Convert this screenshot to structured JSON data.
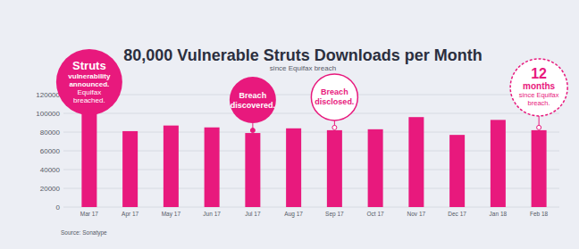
{
  "chart_data": {
    "type": "bar",
    "title": "80,000 Vulnerable Struts Downloads per Month",
    "subtitle": "since Equifax breach",
    "categories": [
      "Mar 17",
      "Apr 17",
      "May 17",
      "Jun 17",
      "Jul 17",
      "Aug 17",
      "Sep 17",
      "Oct 17",
      "Nov 17",
      "Dec 17",
      "Jan 18",
      "Feb 18"
    ],
    "values": [
      100000,
      81000,
      87000,
      85000,
      79000,
      84000,
      82000,
      83000,
      96000,
      77000,
      93000,
      82000
    ],
    "color": "#e8197d",
    "ylim": [
      0,
      120000
    ],
    "yticks": [
      0,
      20000,
      40000,
      60000,
      80000,
      100000,
      120000
    ],
    "grid": true,
    "annotations": [
      {
        "category": "Mar 17",
        "lines": [
          "Struts",
          "vulnerability",
          "announced.",
          "Equifax",
          "breached."
        ]
      },
      {
        "category": "Jul 17",
        "lines": [
          "Breach",
          "discovered."
        ]
      },
      {
        "category": "Sep 17",
        "lines": [
          "Breach",
          "disclosed."
        ]
      },
      {
        "category": "Feb 18",
        "lines": [
          "12",
          "months",
          "since Equifax",
          "breach."
        ]
      }
    ],
    "source": "Source: Sonatype"
  }
}
